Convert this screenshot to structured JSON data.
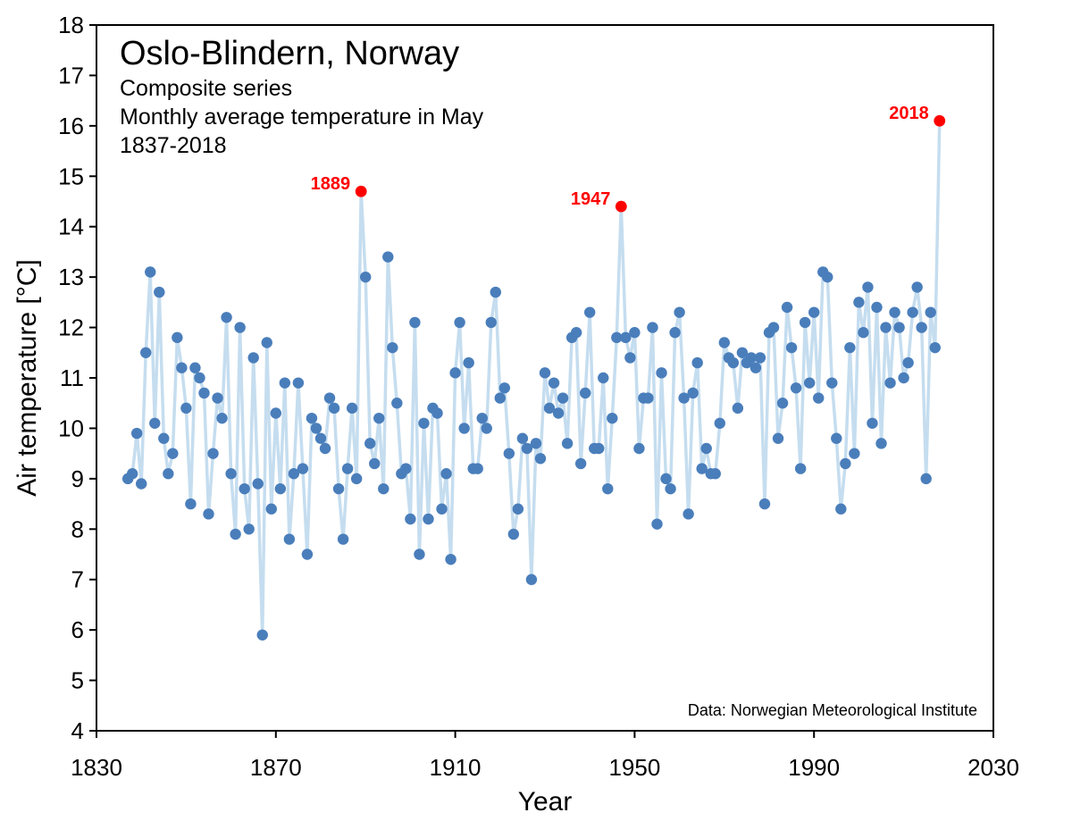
{
  "chart_data": {
    "type": "line",
    "title": "Oslo-Blindern, Norway",
    "subtitle_lines": [
      "Composite series",
      "Monthly average temperature in May",
      "1837-2018"
    ],
    "xlabel": "Year",
    "ylabel": "Air temperature [°C]",
    "source": "Data: Norwegian Meteorological Institute",
    "xlim": [
      1830,
      2030
    ],
    "ylim": [
      4,
      18
    ],
    "xticks": [
      1830,
      1870,
      1910,
      1950,
      1990,
      2030
    ],
    "yticks": [
      4,
      5,
      6,
      7,
      8,
      9,
      10,
      11,
      12,
      13,
      14,
      15,
      16,
      17,
      18
    ],
    "grid": false,
    "line_color": "#c5ddef",
    "marker_color": "#4a7ebb",
    "highlight_color": "#ff0000",
    "series": [
      {
        "x": [
          1837,
          1838,
          1839,
          1840,
          1841,
          1842,
          1843,
          1844,
          1845,
          1846,
          1847,
          1848,
          1849,
          1850,
          1851,
          1852,
          1853,
          1854,
          1855,
          1856,
          1857,
          1858,
          1859,
          1860,
          1861,
          1862,
          1863,
          1864,
          1865,
          1866,
          1867,
          1868,
          1869,
          1870,
          1871,
          1872,
          1873,
          1874,
          1875,
          1876,
          1877,
          1878,
          1879,
          1880,
          1881,
          1882,
          1883,
          1884,
          1885,
          1886,
          1887,
          1888,
          1889,
          1890,
          1891,
          1892,
          1893,
          1894,
          1895,
          1896,
          1897,
          1898,
          1899,
          1900,
          1901,
          1902,
          1903,
          1904,
          1905,
          1906,
          1907,
          1908,
          1909,
          1910,
          1911,
          1912,
          1913,
          1914,
          1915,
          1916,
          1917,
          1918,
          1919,
          1920,
          1921,
          1922,
          1923,
          1924,
          1925,
          1926,
          1927,
          1928,
          1929,
          1930,
          1931,
          1932,
          1933,
          1934,
          1935,
          1936,
          1937,
          1938,
          1939,
          1940,
          1941,
          1942,
          1943,
          1944,
          1945,
          1946,
          1947,
          1948,
          1949,
          1950,
          1951,
          1952,
          1953,
          1954,
          1955,
          1956,
          1957,
          1958,
          1959,
          1960,
          1961,
          1962,
          1963,
          1964,
          1965,
          1966,
          1967,
          1968,
          1969,
          1970,
          1971,
          1972,
          1973,
          1974,
          1975,
          1976,
          1977,
          1978,
          1979,
          1980,
          1981,
          1982,
          1983,
          1984,
          1985,
          1986,
          1987,
          1988,
          1989,
          1990,
          1991,
          1992,
          1993,
          1994,
          1995,
          1996,
          1997,
          1998,
          1999,
          2000,
          2001,
          2002,
          2003,
          2004,
          2005,
          2006,
          2007,
          2008,
          2009,
          2010,
          2011,
          2012,
          2013,
          2014,
          2015,
          2016,
          2017,
          2018
        ],
        "y": [
          9.0,
          9.1,
          9.9,
          8.9,
          11.5,
          13.1,
          10.1,
          12.7,
          9.8,
          9.1,
          9.5,
          11.8,
          11.2,
          10.4,
          8.5,
          11.2,
          11.0,
          10.7,
          8.3,
          9.5,
          10.6,
          10.2,
          12.2,
          9.1,
          7.9,
          12.0,
          8.8,
          8.0,
          11.4,
          8.9,
          5.9,
          11.7,
          8.4,
          10.3,
          8.8,
          10.9,
          7.8,
          9.1,
          10.9,
          9.2,
          7.5,
          10.2,
          10.0,
          9.8,
          9.6,
          10.6,
          10.4,
          8.8,
          7.8,
          9.2,
          10.4,
          9.0,
          14.7,
          13.0,
          9.7,
          9.3,
          10.2,
          8.8,
          13.4,
          11.6,
          10.5,
          9.1,
          9.2,
          8.2,
          12.1,
          7.5,
          10.1,
          8.2,
          10.4,
          10.3,
          8.4,
          9.1,
          7.4,
          11.1,
          12.1,
          10.0,
          11.3,
          9.2,
          9.2,
          10.2,
          10.0,
          12.1,
          12.7,
          10.6,
          10.8,
          9.5,
          7.9,
          8.4,
          9.8,
          9.6,
          7.0,
          9.7,
          9.4,
          11.1,
          10.4,
          10.9,
          10.3,
          10.6,
          9.7,
          11.8,
          11.9,
          9.3,
          10.7,
          12.3,
          9.6,
          9.6,
          11.0,
          8.8,
          10.2,
          11.8,
          14.4,
          11.8,
          11.4,
          11.9,
          9.6,
          10.6,
          10.6,
          12.0,
          8.1,
          11.1,
          9.0,
          8.8,
          11.9,
          12.3,
          10.6,
          8.3,
          10.7,
          11.3,
          9.2,
          9.6,
          9.1,
          9.1,
          10.1,
          11.7,
          11.4,
          11.3,
          10.4,
          11.5,
          11.3,
          11.4,
          11.2,
          11.4,
          8.5,
          11.9,
          12.0,
          9.8,
          10.5,
          12.4,
          11.6,
          10.8,
          9.2,
          12.1,
          10.9,
          12.3,
          10.6,
          13.1,
          13.0,
          10.9,
          9.8,
          8.4,
          9.3,
          11.6,
          9.5,
          12.5,
          11.9,
          12.8,
          10.1,
          12.4,
          9.7,
          12.0,
          10.9,
          12.3,
          12.0,
          11.0,
          11.3,
          12.3,
          12.8,
          12.0,
          9.0,
          12.3,
          11.6,
          16.1
        ]
      }
    ],
    "highlights": [
      {
        "label": "1889",
        "x": 1889,
        "y": 14.7
      },
      {
        "label": "1947",
        "x": 1947,
        "y": 14.4
      },
      {
        "label": "2018",
        "x": 2018,
        "y": 16.1
      }
    ]
  }
}
